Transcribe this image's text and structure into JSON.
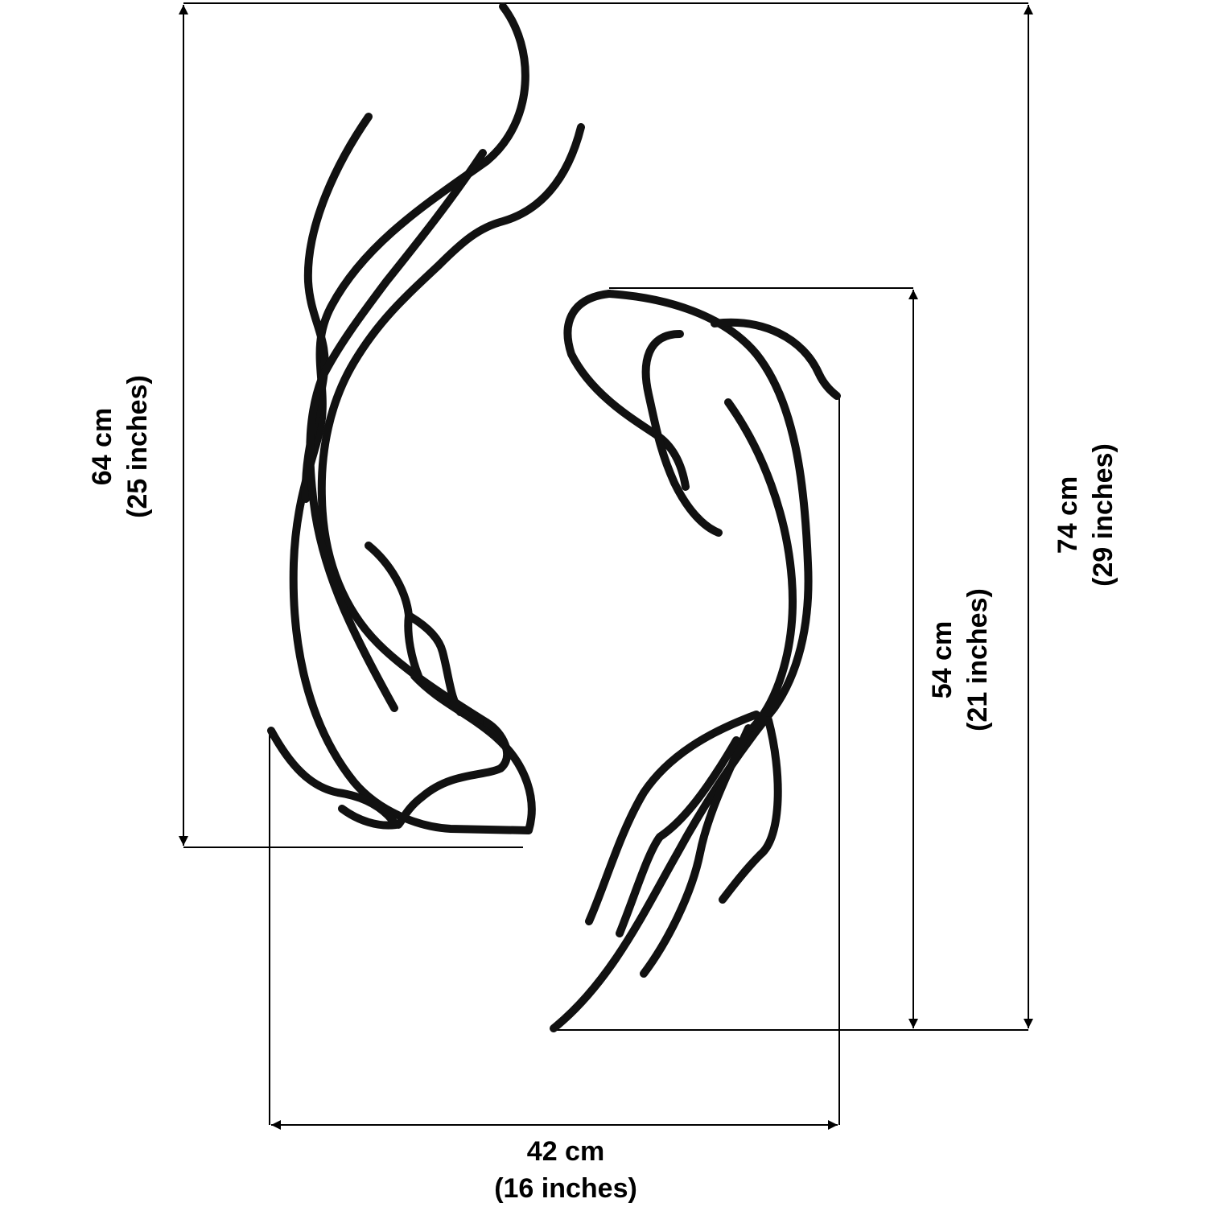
{
  "dimensions": {
    "left_height": {
      "metric": "64 cm",
      "imperial": "(25 inches)"
    },
    "total_height": {
      "metric": "74 cm",
      "imperial": "(29 inches)"
    },
    "right_height": {
      "metric": "54 cm",
      "imperial": "(21 inches)"
    },
    "width": {
      "metric": "42 cm",
      "imperial": "(16 inches)"
    }
  },
  "colors": {
    "line": "#000000",
    "background": "#ffffff"
  }
}
